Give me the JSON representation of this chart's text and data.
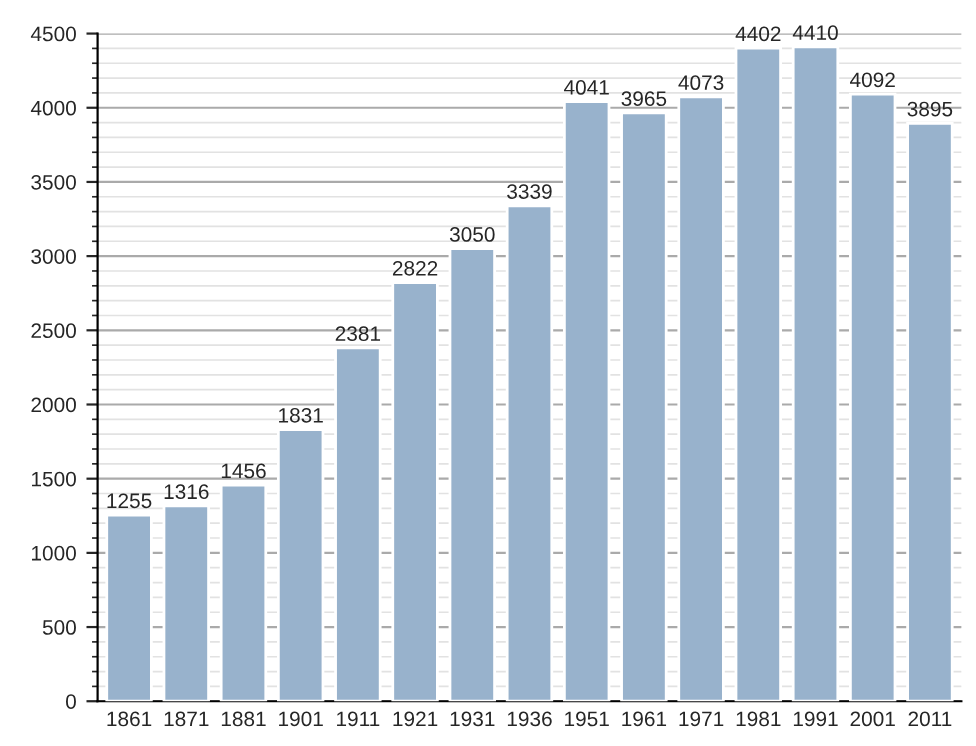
{
  "chart_data": {
    "type": "bar",
    "categories": [
      "1861",
      "1871",
      "1881",
      "1901",
      "1911",
      "1921",
      "1931",
      "1936",
      "1951",
      "1961",
      "1971",
      "1981",
      "1991",
      "2001",
      "2011"
    ],
    "values": [
      1255,
      1316,
      1456,
      1831,
      2381,
      2822,
      3050,
      3339,
      4041,
      3965,
      4073,
      4402,
      4410,
      4092,
      3895
    ],
    "color": "#98b2cc",
    "ylim": [
      0,
      4500
    ],
    "yticks": [
      0,
      500,
      1000,
      1500,
      2000,
      2500,
      3000,
      3500,
      4000,
      4500
    ],
    "grid": "y",
    "data_labels": true
  }
}
